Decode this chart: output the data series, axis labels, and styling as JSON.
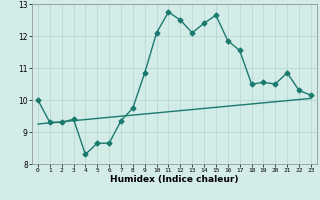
{
  "title": "",
  "xlabel": "Humidex (Indice chaleur)",
  "ylabel": "",
  "bg_color": "#d4ece8",
  "grid_color": "#b8d8d4",
  "line_color": "#1a7a6e",
  "xlim": [
    -0.5,
    23.5
  ],
  "ylim": [
    8,
    13
  ],
  "yticks": [
    8,
    9,
    10,
    11,
    12,
    13
  ],
  "xticks": [
    0,
    1,
    2,
    3,
    4,
    5,
    6,
    7,
    8,
    9,
    10,
    11,
    12,
    13,
    14,
    15,
    16,
    17,
    18,
    19,
    20,
    21,
    22,
    23
  ],
  "curve1_x": [
    0,
    1,
    2,
    3,
    4,
    5,
    6,
    7,
    8,
    9,
    10,
    11,
    12,
    13,
    14,
    15,
    16,
    17,
    18,
    19,
    20,
    21,
    22,
    23
  ],
  "curve1_y": [
    10.0,
    9.3,
    9.3,
    9.4,
    8.3,
    8.65,
    8.65,
    9.35,
    9.75,
    10.85,
    12.1,
    12.75,
    12.5,
    12.1,
    12.4,
    12.65,
    11.85,
    11.55,
    10.5,
    10.55,
    10.5,
    10.85,
    10.3,
    10.15
  ],
  "curve2_x": [
    0,
    23
  ],
  "curve2_y": [
    9.25,
    10.05
  ],
  "marker": "D",
  "marker_size": 2.5,
  "linewidth": 1.0
}
